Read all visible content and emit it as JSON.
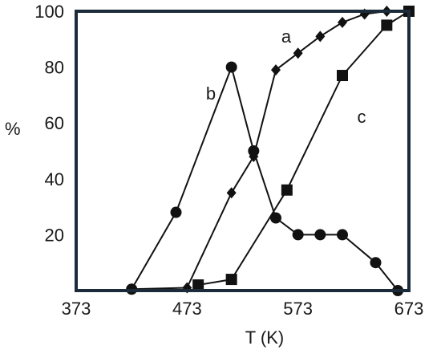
{
  "chart_data": {
    "type": "line",
    "xlabel": "T (K)",
    "ylabel": "%",
    "xlim": [
      373,
      673
    ],
    "ylim": [
      0,
      100
    ],
    "x_ticks": [
      373,
      473,
      573,
      673
    ],
    "y_ticks": [
      20,
      40,
      60,
      80,
      100
    ],
    "grid": false,
    "colors": {
      "frame": "#1c2b3a",
      "line": "#111111",
      "marker": "#111111"
    },
    "series": [
      {
        "name": "a",
        "marker": "diamond",
        "x": [
          423,
          473,
          513,
          533,
          553,
          573,
          593,
          613,
          633,
          653,
          673
        ],
        "y": [
          0.5,
          1,
          35,
          48,
          79,
          85,
          91,
          96,
          99,
          100,
          100
        ]
      },
      {
        "name": "b",
        "marker": "circle",
        "x": [
          423,
          463,
          513,
          533,
          553,
          573,
          593,
          613,
          643,
          663
        ],
        "y": [
          0.5,
          28,
          80,
          50,
          26,
          20,
          20,
          20,
          10,
          0
        ]
      },
      {
        "name": "c",
        "marker": "square",
        "x": [
          483,
          513,
          563,
          613,
          653,
          673
        ],
        "y": [
          2,
          4,
          36,
          77,
          95,
          100
        ]
      }
    ]
  }
}
